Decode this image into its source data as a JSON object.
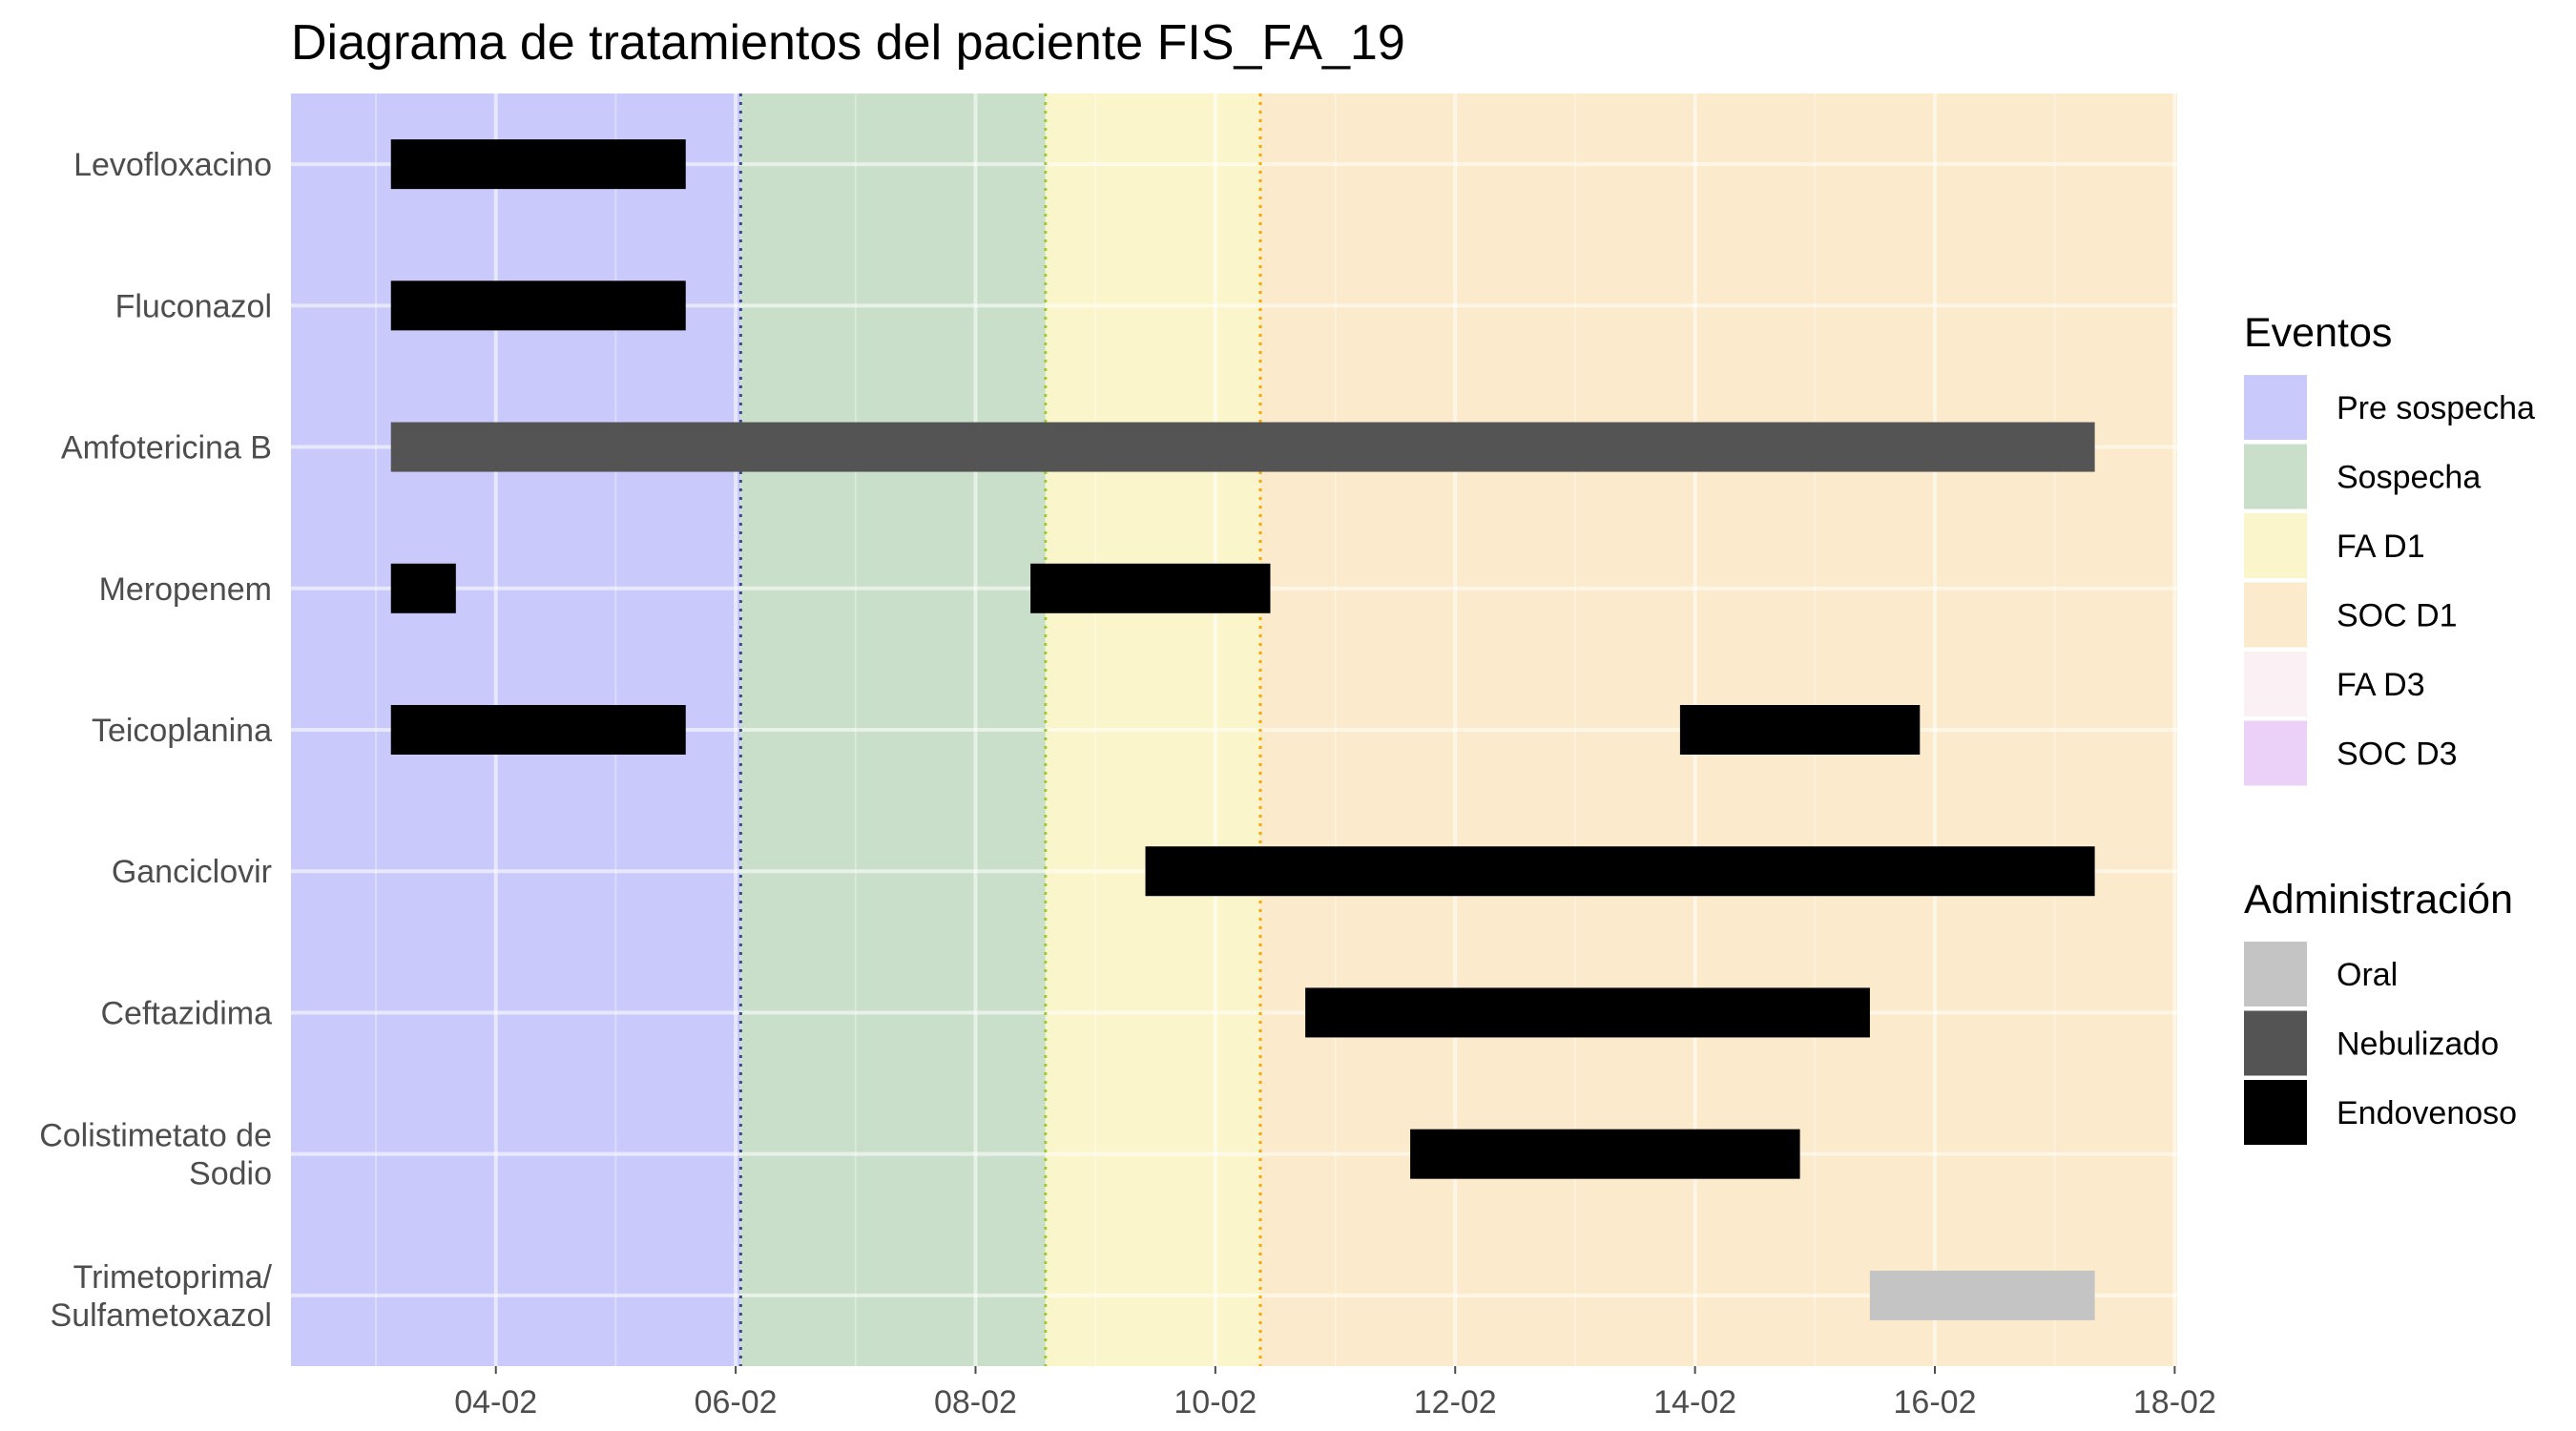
{
  "chart_data": {
    "type": "gantt",
    "title": "Diagrama de tratamientos del paciente FIS_FA_19",
    "x_axis": {
      "type": "date",
      "year": 2000,
      "range": [
        "2000-02-02T07:00",
        "2000-02-18T00:30"
      ],
      "ticks": [
        "2000-02-04",
        "2000-02-06",
        "2000-02-08",
        "2000-02-10",
        "2000-02-12",
        "2000-02-14",
        "2000-02-16",
        "2000-02-18"
      ],
      "tick_labels": [
        "04-02",
        "06-02",
        "08-02",
        "10-02",
        "12-02",
        "14-02",
        "16-02",
        "18-02"
      ]
    },
    "categories": [
      "Levofloxacino",
      "Fluconazol",
      "Amfotericina B",
      "Meropenem",
      "Teicoplanina",
      "Ganciclovir",
      "Ceftazidima",
      "Colistimetato de\nSodio",
      "Trimetoprima/\nSulfametoxazol"
    ],
    "bars": [
      {
        "category": 0,
        "start": "2000-02-03T03:00",
        "end": "2000-02-05T14:00",
        "route": "Endovenoso"
      },
      {
        "category": 1,
        "start": "2000-02-03T03:00",
        "end": "2000-02-05T14:00",
        "route": "Endovenoso"
      },
      {
        "category": 2,
        "start": "2000-02-03T03:00",
        "end": "2000-02-17T08:00",
        "route": "Nebulizado"
      },
      {
        "category": 3,
        "start": "2000-02-03T03:00",
        "end": "2000-02-03T16:00",
        "route": "Endovenoso"
      },
      {
        "category": 3,
        "start": "2000-02-08T11:00",
        "end": "2000-02-10T11:00",
        "route": "Endovenoso"
      },
      {
        "category": 4,
        "start": "2000-02-03T03:00",
        "end": "2000-02-05T14:00",
        "route": "Endovenoso"
      },
      {
        "category": 4,
        "start": "2000-02-13T21:00",
        "end": "2000-02-15T21:00",
        "route": "Endovenoso"
      },
      {
        "category": 5,
        "start": "2000-02-09T10:00",
        "end": "2000-02-17T08:00",
        "route": "Endovenoso"
      },
      {
        "category": 6,
        "start": "2000-02-10T18:00",
        "end": "2000-02-15T11:00",
        "route": "Endovenoso"
      },
      {
        "category": 7,
        "start": "2000-02-11T15:00",
        "end": "2000-02-14T21:00",
        "route": "Endovenoso"
      },
      {
        "category": 8,
        "start": "2000-02-15T11:00",
        "end": "2000-02-17T08:00",
        "route": "Oral"
      }
    ],
    "event_periods": [
      {
        "event": "Pre sospecha",
        "start": "2000-02-02T07:00",
        "end": "2000-02-06T01:00"
      },
      {
        "event": "Sospecha",
        "start": "2000-02-06T01:00",
        "end": "2000-02-08T14:00"
      },
      {
        "event": "FA D1",
        "start": "2000-02-08T14:00",
        "end": "2000-02-10T09:00"
      },
      {
        "event": "SOC D1",
        "start": "2000-02-10T09:00",
        "end": "2000-02-18T00:30"
      }
    ],
    "event_lines": [
      {
        "date": "2000-02-06T01:00",
        "color": "#3b4b8c"
      },
      {
        "date": "2000-02-08T14:00",
        "color": "#9acd32"
      },
      {
        "date": "2000-02-10T09:00",
        "color": "#ffa500"
      }
    ],
    "legend_position": "right",
    "grid": true,
    "legends": [
      {
        "title": "Eventos",
        "items": [
          {
            "label": "Pre sospecha",
            "color": "#c9c9fb"
          },
          {
            "label": "Sospecha",
            "color": "#c9dfc9"
          },
          {
            "label": "FA D1",
            "color": "#fbf5cc"
          },
          {
            "label": "SOC D1",
            "color": "#fbeacb"
          },
          {
            "label": "FA D3",
            "color": "#fbf0f3"
          },
          {
            "label": "SOC D3",
            "color": "#ebd1f7"
          }
        ]
      },
      {
        "title": "Administración",
        "items": [
          {
            "label": "Oral",
            "color": "#c4c4c4"
          },
          {
            "label": "Nebulizado",
            "color": "#545454"
          },
          {
            "label": "Endovenoso",
            "color": "#000000"
          }
        ]
      }
    ]
  }
}
